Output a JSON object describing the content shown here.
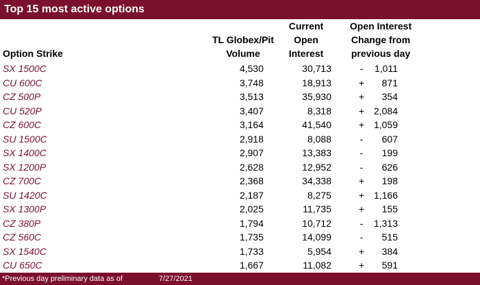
{
  "title": "Top 15 most active options",
  "headers": {
    "strike": "Option Strike",
    "volume": [
      "TL Globex/Pit",
      "Volume"
    ],
    "open_interest": [
      "Current",
      "Open",
      "Interest"
    ],
    "change": [
      "Open Interest",
      "Change from",
      "previous day"
    ]
  },
  "rows": [
    {
      "strike": "SX 1500C",
      "volume": "4,530",
      "oi": "30,713",
      "sign": "-",
      "change": "1,011"
    },
    {
      "strike": "CU 600C",
      "volume": "3,748",
      "oi": "18,913",
      "sign": "+",
      "change": "871"
    },
    {
      "strike": "CZ 500P",
      "volume": "3,513",
      "oi": "35,930",
      "sign": "+",
      "change": "354"
    },
    {
      "strike": "CU 520P",
      "volume": "3,407",
      "oi": "8,318",
      "sign": "+",
      "change": "2,084"
    },
    {
      "strike": "CZ 600C",
      "volume": "3,164",
      "oi": "41,540",
      "sign": "+",
      "change": "1,059"
    },
    {
      "strike": "SU 1500C",
      "volume": "2,918",
      "oi": "8,088",
      "sign": "-",
      "change": "607"
    },
    {
      "strike": "SX 1400C",
      "volume": "2,907",
      "oi": "13,383",
      "sign": "-",
      "change": "199"
    },
    {
      "strike": "SX 1200P",
      "volume": "2,628",
      "oi": "12,952",
      "sign": "-",
      "change": "626"
    },
    {
      "strike": "CZ 700C",
      "volume": "2,368",
      "oi": "34,338",
      "sign": "+",
      "change": "198"
    },
    {
      "strike": "SU 1420C",
      "volume": "2,187",
      "oi": "8,275",
      "sign": "+",
      "change": "1,166"
    },
    {
      "strike": "SX 1300P",
      "volume": "2,025",
      "oi": "11,735",
      "sign": "+",
      "change": "155"
    },
    {
      "strike": "CZ 380P",
      "volume": "1,794",
      "oi": "10,712",
      "sign": "-",
      "change": "1,313"
    },
    {
      "strike": "CZ 560C",
      "volume": "1,735",
      "oi": "14,099",
      "sign": "-",
      "change": "515"
    },
    {
      "strike": "SX 1540C",
      "volume": "1,733",
      "oi": "5,954",
      "sign": "+",
      "change": "384"
    },
    {
      "strike": "CU 650C",
      "volume": "1,667",
      "oi": "11,082",
      "sign": "+",
      "change": "591"
    }
  ],
  "footer": {
    "note": "*Previous day preliminary data as of",
    "date": "7/27/2021"
  },
  "colors": {
    "brand": "#7a0f2e"
  }
}
